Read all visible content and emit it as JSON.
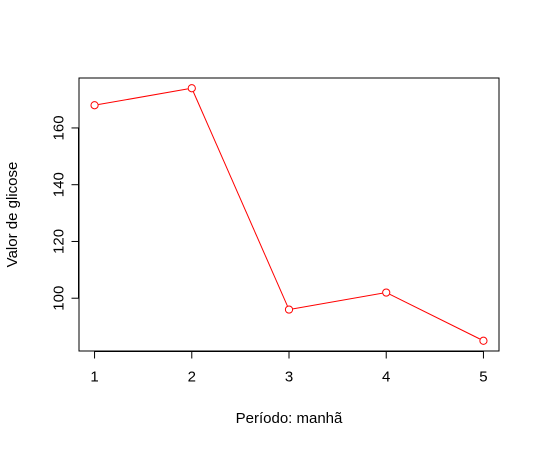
{
  "chart_data": {
    "type": "line",
    "title": "",
    "xlabel": "Período: manhã",
    "ylabel": "Valor de glicose",
    "x": [
      1,
      2,
      3,
      4,
      5
    ],
    "x_ticks": [
      "1",
      "2",
      "3",
      "4",
      "5"
    ],
    "y_ticks": [
      "100",
      "120",
      "140",
      "160"
    ],
    "y_tick_values": [
      100,
      120,
      140,
      160
    ],
    "xlim": [
      0.84,
      5.16
    ],
    "ylim": [
      81.4,
      177.6
    ],
    "series": [
      {
        "values": [
          168,
          174,
          96,
          102,
          85
        ],
        "color": "#ff0000",
        "marker": "open-circle"
      }
    ],
    "grid": false,
    "legend": "none"
  }
}
